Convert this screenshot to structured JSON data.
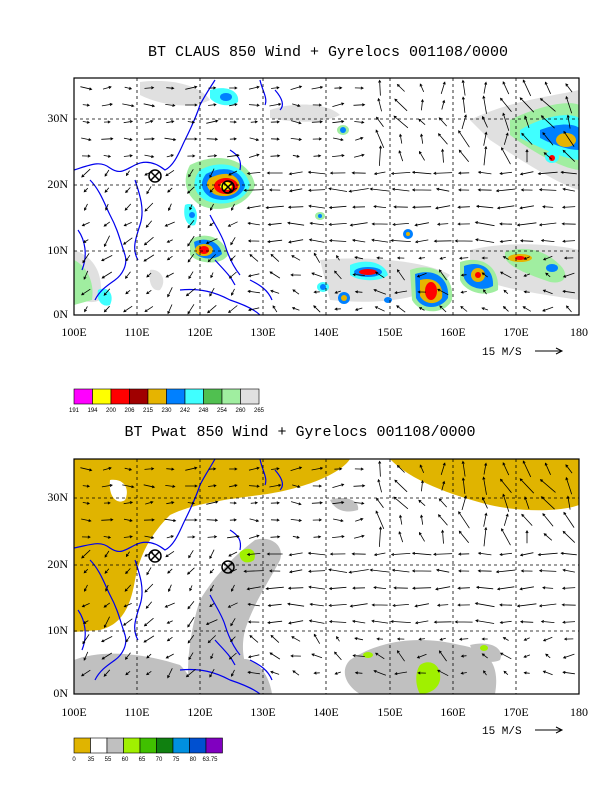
{
  "panels": [
    {
      "id": "claus",
      "title": "BT CLAUS 850 Wind + Gyrelocs 001108/0000",
      "x_ticks": [
        "100E",
        "110E",
        "120E",
        "130E",
        "140E",
        "150E",
        "160E",
        "170E",
        "180"
      ],
      "y_ticks": [
        "0N",
        "10N",
        "20N",
        "30N"
      ],
      "scale_label": "15 M/S",
      "legend": {
        "colors": [
          "#ff00ff",
          "#ffff00",
          "#ff0000",
          "#a00000",
          "#e6b400",
          "#0080ff",
          "#40ffff",
          "#50c050",
          "#a0eea0",
          "#e0e0e0"
        ],
        "labels": [
          "191",
          "194",
          "200",
          "206",
          "215",
          "230",
          "242",
          "248",
          "254",
          "260",
          "265"
        ]
      }
    },
    {
      "id": "pwat",
      "title": "BT Pwat 850 Wind + Gyrelocs 001108/0000",
      "x_ticks": [
        "100E",
        "110E",
        "120E",
        "130E",
        "140E",
        "150E",
        "160E",
        "170E",
        "180"
      ],
      "y_ticks": [
        "0N",
        "10N",
        "20N",
        "30N"
      ],
      "scale_label": "15 M/S",
      "legend": {
        "colors": [
          "#e0b400",
          "#ffffff",
          "#c0c0c0",
          "#a0f000",
          "#40c000",
          "#108010",
          "#0090e0",
          "#0050d0",
          "#8000c0"
        ],
        "labels": [
          "0",
          "35",
          "55",
          "60",
          "65",
          "70",
          "75",
          "80",
          "63.75"
        ]
      }
    }
  ],
  "gyre_locations": [
    {
      "lon": 112.5,
      "lat": 21.5
    },
    {
      "lon": 124.0,
      "lat": 19.5
    }
  ]
}
